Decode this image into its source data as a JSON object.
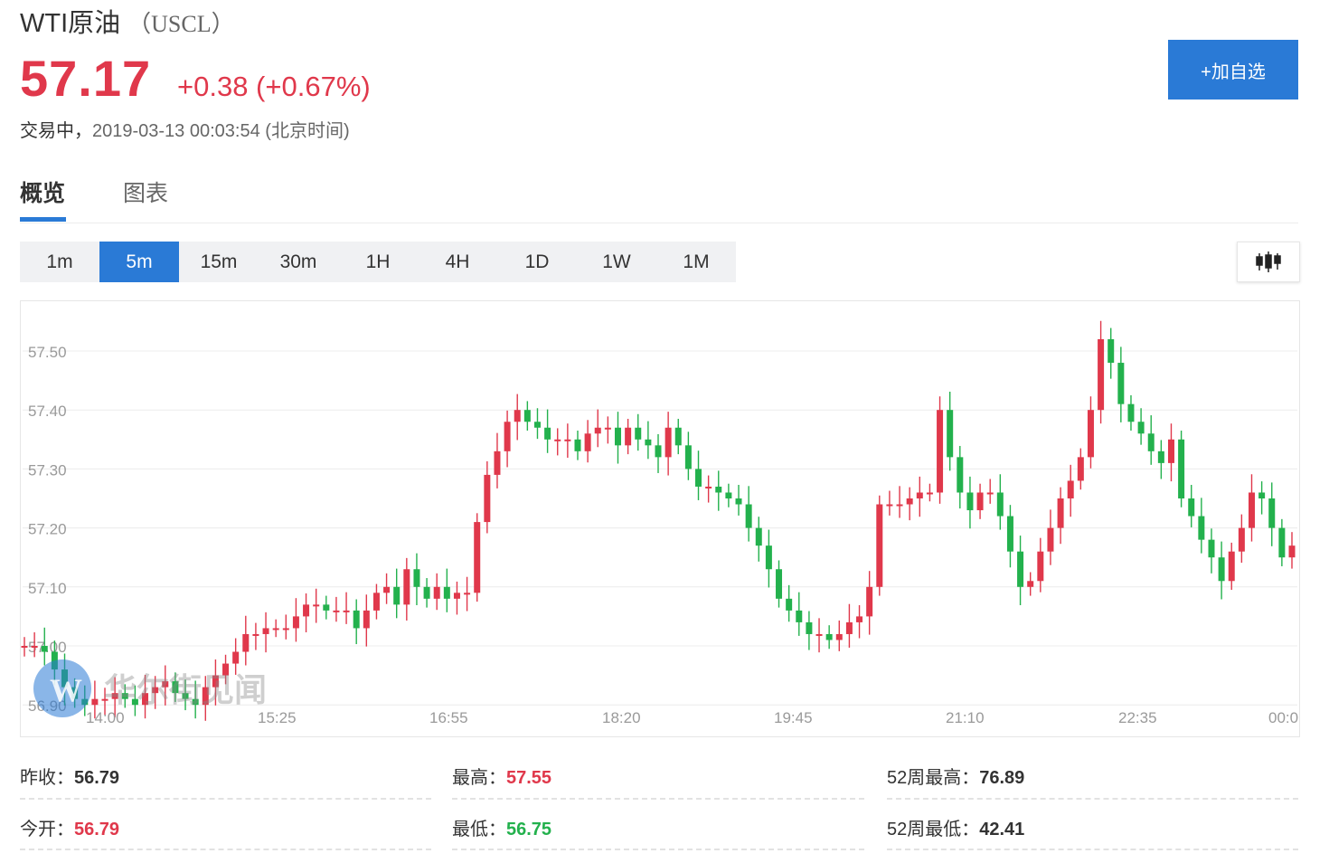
{
  "header": {
    "name": "WTI原油",
    "symbol": "（USCL）",
    "price": "57.17",
    "change": "+0.38 (+0.67%)",
    "status": "交易中，",
    "datetime": "2019-03-13 00:03:54",
    "timezone": "(北京时间)",
    "add_button": "+加自选"
  },
  "tabs": [
    {
      "label": "概览",
      "active": true
    },
    {
      "label": "图表",
      "active": false
    }
  ],
  "periods": [
    "1m",
    "5m",
    "15m",
    "30m",
    "1H",
    "4H",
    "1D",
    "1W",
    "1M"
  ],
  "active_period": "5m",
  "chart_toggle_icon": "candlestick-icon",
  "colors": {
    "up": "#e0384b",
    "down": "#23b14d",
    "accent": "#2a7ad6"
  },
  "watermark": "华尔街见闻",
  "chart_data": {
    "type": "candlestick",
    "y_ticks": [
      "57.50",
      "57.40",
      "57.30",
      "57.20",
      "57.10",
      "57.00",
      "56.90"
    ],
    "x_ticks": [
      "14:00",
      "15:25",
      "16:55",
      "18:20",
      "19:45",
      "21:10",
      "22:35",
      "00:0"
    ],
    "ylim": [
      56.89,
      57.55
    ],
    "grid": true,
    "closes": [
      57.0,
      57.0,
      56.99,
      56.96,
      56.93,
      56.91,
      56.9,
      56.91,
      56.91,
      56.92,
      56.91,
      56.9,
      56.92,
      56.93,
      56.94,
      56.92,
      56.91,
      56.9,
      56.93,
      56.95,
      56.97,
      56.99,
      57.02,
      57.02,
      57.03,
      57.03,
      57.03,
      57.05,
      57.07,
      57.07,
      57.06,
      57.06,
      57.06,
      57.03,
      57.06,
      57.09,
      57.1,
      57.07,
      57.13,
      57.1,
      57.08,
      57.1,
      57.08,
      57.09,
      57.09,
      57.21,
      57.29,
      57.33,
      57.38,
      57.4,
      57.38,
      57.37,
      57.35,
      57.35,
      57.35,
      57.33,
      57.36,
      57.37,
      57.37,
      57.34,
      57.37,
      57.35,
      57.34,
      57.32,
      57.37,
      57.34,
      57.3,
      57.27,
      57.27,
      57.26,
      57.25,
      57.24,
      57.2,
      57.17,
      57.13,
      57.08,
      57.06,
      57.04,
      57.02,
      57.02,
      57.01,
      57.02,
      57.04,
      57.05,
      57.1,
      57.24,
      57.24,
      57.24,
      57.25,
      57.26,
      57.26,
      57.4,
      57.32,
      57.26,
      57.23,
      57.26,
      57.26,
      57.22,
      57.16,
      57.1,
      57.11,
      57.16,
      57.2,
      57.25,
      57.28,
      57.32,
      57.4,
      57.52,
      57.48,
      57.41,
      57.38,
      57.36,
      57.33,
      57.31,
      57.35,
      57.25,
      57.22,
      57.18,
      57.15,
      57.11,
      57.16,
      57.2,
      57.26,
      57.25,
      57.2,
      57.15,
      57.17
    ]
  },
  "stats": [
    {
      "label": "昨收：",
      "value": "56.79",
      "tone": "neutral"
    },
    {
      "label": "最高：",
      "value": "57.55",
      "tone": "up"
    },
    {
      "label": "52周最高：",
      "value": "76.89",
      "tone": "neutral"
    },
    {
      "label": "今开：",
      "value": "56.79",
      "tone": "up"
    },
    {
      "label": "最低：",
      "value": "56.75",
      "tone": "down"
    },
    {
      "label": "52周最低：",
      "value": "42.41",
      "tone": "neutral"
    }
  ]
}
